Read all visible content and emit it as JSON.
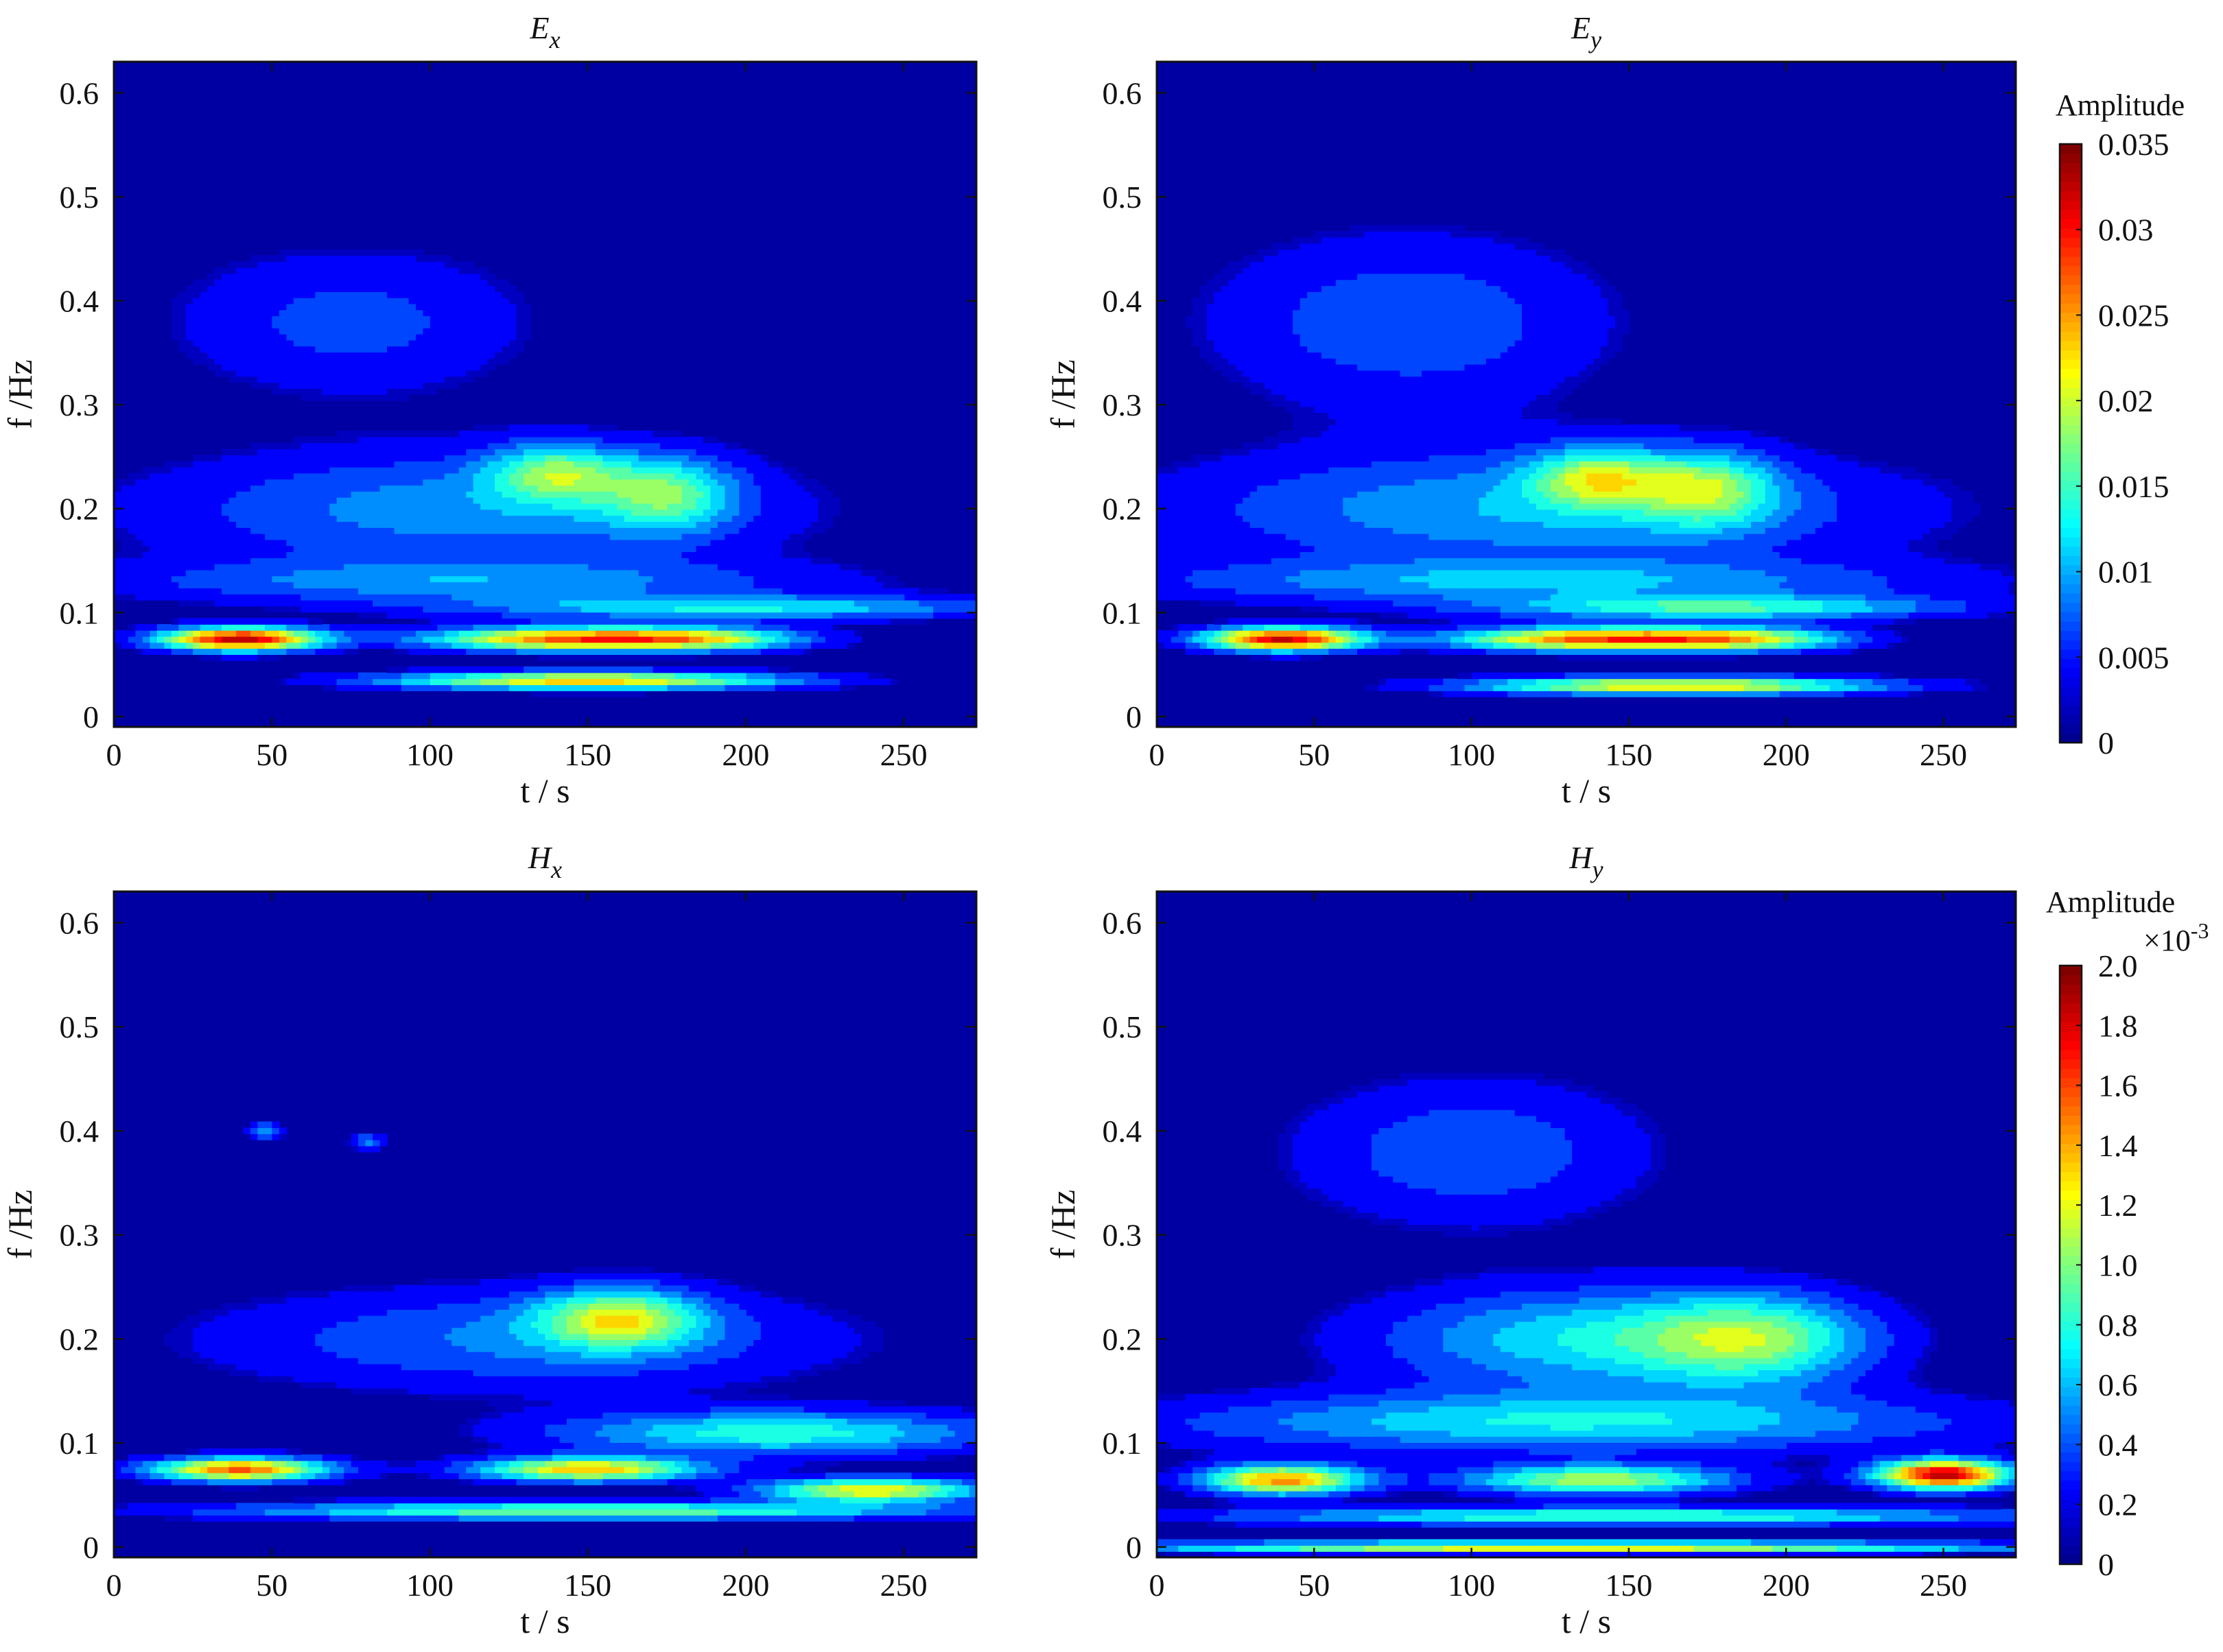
{
  "chart_data": [
    {
      "type": "heatmap",
      "title": "E",
      "title_sub": "x",
      "xlabel": "t / s",
      "ylabel": "f /Hz",
      "xlim": [
        0,
        273
      ],
      "ylim": [
        -0.01,
        0.63
      ],
      "xticks": [
        "0",
        "50",
        "100",
        "150",
        "200",
        "250"
      ],
      "yticks": [
        "0",
        "0.1",
        "0.2",
        "0.3",
        "0.4",
        "0.5",
        "0.6"
      ],
      "scale_max": 0.035,
      "hotspots": [
        {
          "t": 40,
          "f": 0.075,
          "amp": 0.034,
          "st": 18,
          "sf": 0.008
        },
        {
          "t": 140,
          "f": 0.075,
          "amp": 0.025,
          "st": 30,
          "sf": 0.008
        },
        {
          "t": 185,
          "f": 0.075,
          "amp": 0.018,
          "st": 25,
          "sf": 0.008
        },
        {
          "t": 150,
          "f": 0.035,
          "amp": 0.024,
          "st": 45,
          "sf": 0.006
        },
        {
          "t": 200,
          "f": 0.105,
          "amp": 0.012,
          "st": 60,
          "sf": 0.008
        },
        {
          "t": 140,
          "f": 0.235,
          "amp": 0.014,
          "st": 15,
          "sf": 0.02
        },
        {
          "t": 175,
          "f": 0.215,
          "amp": 0.013,
          "st": 15,
          "sf": 0.025
        },
        {
          "t": 75,
          "f": 0.38,
          "amp": 0.006,
          "st": 40,
          "sf": 0.05
        },
        {
          "t": 110,
          "f": 0.2,
          "amp": 0.009,
          "st": 70,
          "sf": 0.04
        },
        {
          "t": 110,
          "f": 0.13,
          "amp": 0.008,
          "st": 80,
          "sf": 0.015
        }
      ]
    },
    {
      "type": "heatmap",
      "title": "E",
      "title_sub": "y",
      "xlabel": "t / s",
      "ylabel": "f /Hz",
      "xlim": [
        0,
        273
      ],
      "ylim": [
        -0.01,
        0.63
      ],
      "xticks": [
        "0",
        "50",
        "100",
        "150",
        "200",
        "250"
      ],
      "yticks": [
        "0",
        "0.1",
        "0.2",
        "0.3",
        "0.4",
        "0.5",
        "0.6"
      ],
      "scale_max": 0.035,
      "hotspots": [
        {
          "t": 40,
          "f": 0.075,
          "amp": 0.033,
          "st": 18,
          "sf": 0.008
        },
        {
          "t": 135,
          "f": 0.075,
          "amp": 0.026,
          "st": 30,
          "sf": 0.008
        },
        {
          "t": 185,
          "f": 0.075,
          "amp": 0.02,
          "st": 25,
          "sf": 0.008
        },
        {
          "t": 165,
          "f": 0.03,
          "amp": 0.024,
          "st": 45,
          "sf": 0.006
        },
        {
          "t": 180,
          "f": 0.105,
          "amp": 0.014,
          "st": 50,
          "sf": 0.008
        },
        {
          "t": 140,
          "f": 0.23,
          "amp": 0.015,
          "st": 15,
          "sf": 0.02
        },
        {
          "t": 175,
          "f": 0.22,
          "amp": 0.014,
          "st": 15,
          "sf": 0.025
        },
        {
          "t": 80,
          "f": 0.38,
          "amp": 0.007,
          "st": 45,
          "sf": 0.06
        },
        {
          "t": 120,
          "f": 0.2,
          "amp": 0.01,
          "st": 80,
          "sf": 0.04
        },
        {
          "t": 120,
          "f": 0.13,
          "amp": 0.009,
          "st": 90,
          "sf": 0.015
        }
      ]
    },
    {
      "type": "heatmap",
      "title": "H",
      "title_sub": "x",
      "xlabel": "t / s",
      "ylabel": "f /Hz",
      "xlim": [
        0,
        273
      ],
      "ylim": [
        -0.01,
        0.63
      ],
      "xticks": [
        "0",
        "50",
        "100",
        "150",
        "200",
        "250"
      ],
      "yticks": [
        "0",
        "0.1",
        "0.2",
        "0.3",
        "0.4",
        "0.5",
        "0.6"
      ],
      "scale_max": 2.0,
      "hotspots": [
        {
          "t": 40,
          "f": 0.075,
          "amp": 1.6,
          "st": 20,
          "sf": 0.008
        },
        {
          "t": 150,
          "f": 0.075,
          "amp": 1.4,
          "st": 25,
          "sf": 0.008
        },
        {
          "t": 240,
          "f": 0.055,
          "amp": 1.3,
          "st": 25,
          "sf": 0.008
        },
        {
          "t": 150,
          "f": 0.035,
          "amp": 1.0,
          "st": 80,
          "sf": 0.006
        },
        {
          "t": 160,
          "f": 0.22,
          "amp": 1.0,
          "st": 18,
          "sf": 0.02
        },
        {
          "t": 210,
          "f": 0.11,
          "amp": 0.8,
          "st": 50,
          "sf": 0.015
        },
        {
          "t": 130,
          "f": 0.2,
          "amp": 0.45,
          "st": 70,
          "sf": 0.035
        },
        {
          "t": 48,
          "f": 0.4,
          "amp": 0.5,
          "st": 4,
          "sf": 0.006
        },
        {
          "t": 80,
          "f": 0.39,
          "amp": 0.45,
          "st": 4,
          "sf": 0.006
        }
      ]
    },
    {
      "type": "heatmap",
      "title": "H",
      "title_sub": "y",
      "xlabel": "t / s",
      "ylabel": "f /Hz",
      "xlim": [
        0,
        273
      ],
      "ylim": [
        -0.01,
        0.63
      ],
      "xticks": [
        "0",
        "50",
        "100",
        "150",
        "200",
        "250"
      ],
      "yticks": [
        "0",
        "0.1",
        "0.2",
        "0.3",
        "0.4",
        "0.5",
        "0.6"
      ],
      "scale_max": 2.0,
      "hotspots": [
        {
          "t": 250,
          "f": 0.07,
          "amp": 1.95,
          "st": 15,
          "sf": 0.01
        },
        {
          "t": 40,
          "f": 0.065,
          "amp": 1.5,
          "st": 18,
          "sf": 0.01
        },
        {
          "t": 140,
          "f": 0.065,
          "amp": 1.1,
          "st": 30,
          "sf": 0.01
        },
        {
          "t": 130,
          "f": 0.0,
          "amp": 1.3,
          "st": 100,
          "sf": 0.004
        },
        {
          "t": 150,
          "f": 0.03,
          "amp": 0.9,
          "st": 90,
          "sf": 0.006
        },
        {
          "t": 140,
          "f": 0.2,
          "amp": 0.7,
          "st": 50,
          "sf": 0.035
        },
        {
          "t": 190,
          "f": 0.2,
          "amp": 0.75,
          "st": 25,
          "sf": 0.03
        },
        {
          "t": 100,
          "f": 0.38,
          "amp": 0.4,
          "st": 40,
          "sf": 0.05
        },
        {
          "t": 130,
          "f": 0.12,
          "amp": 0.7,
          "st": 90,
          "sf": 0.02
        }
      ]
    }
  ],
  "colorbars": [
    {
      "title": "Amplitude",
      "exponent": "",
      "ticks": [
        "0",
        "0.005",
        "0.01",
        "0.015",
        "0.02",
        "0.025",
        "0.03",
        "0.035"
      ],
      "min": 0,
      "max": 0.035
    },
    {
      "title": "Amplitude",
      "exponent": "×10-3",
      "ticks": [
        "0",
        "0.2",
        "0.4",
        "0.6",
        "0.8",
        "1.0",
        "1.2",
        "1.4",
        "1.6",
        "1.8",
        "2.0"
      ],
      "min": 0,
      "max": 2.0
    }
  ]
}
